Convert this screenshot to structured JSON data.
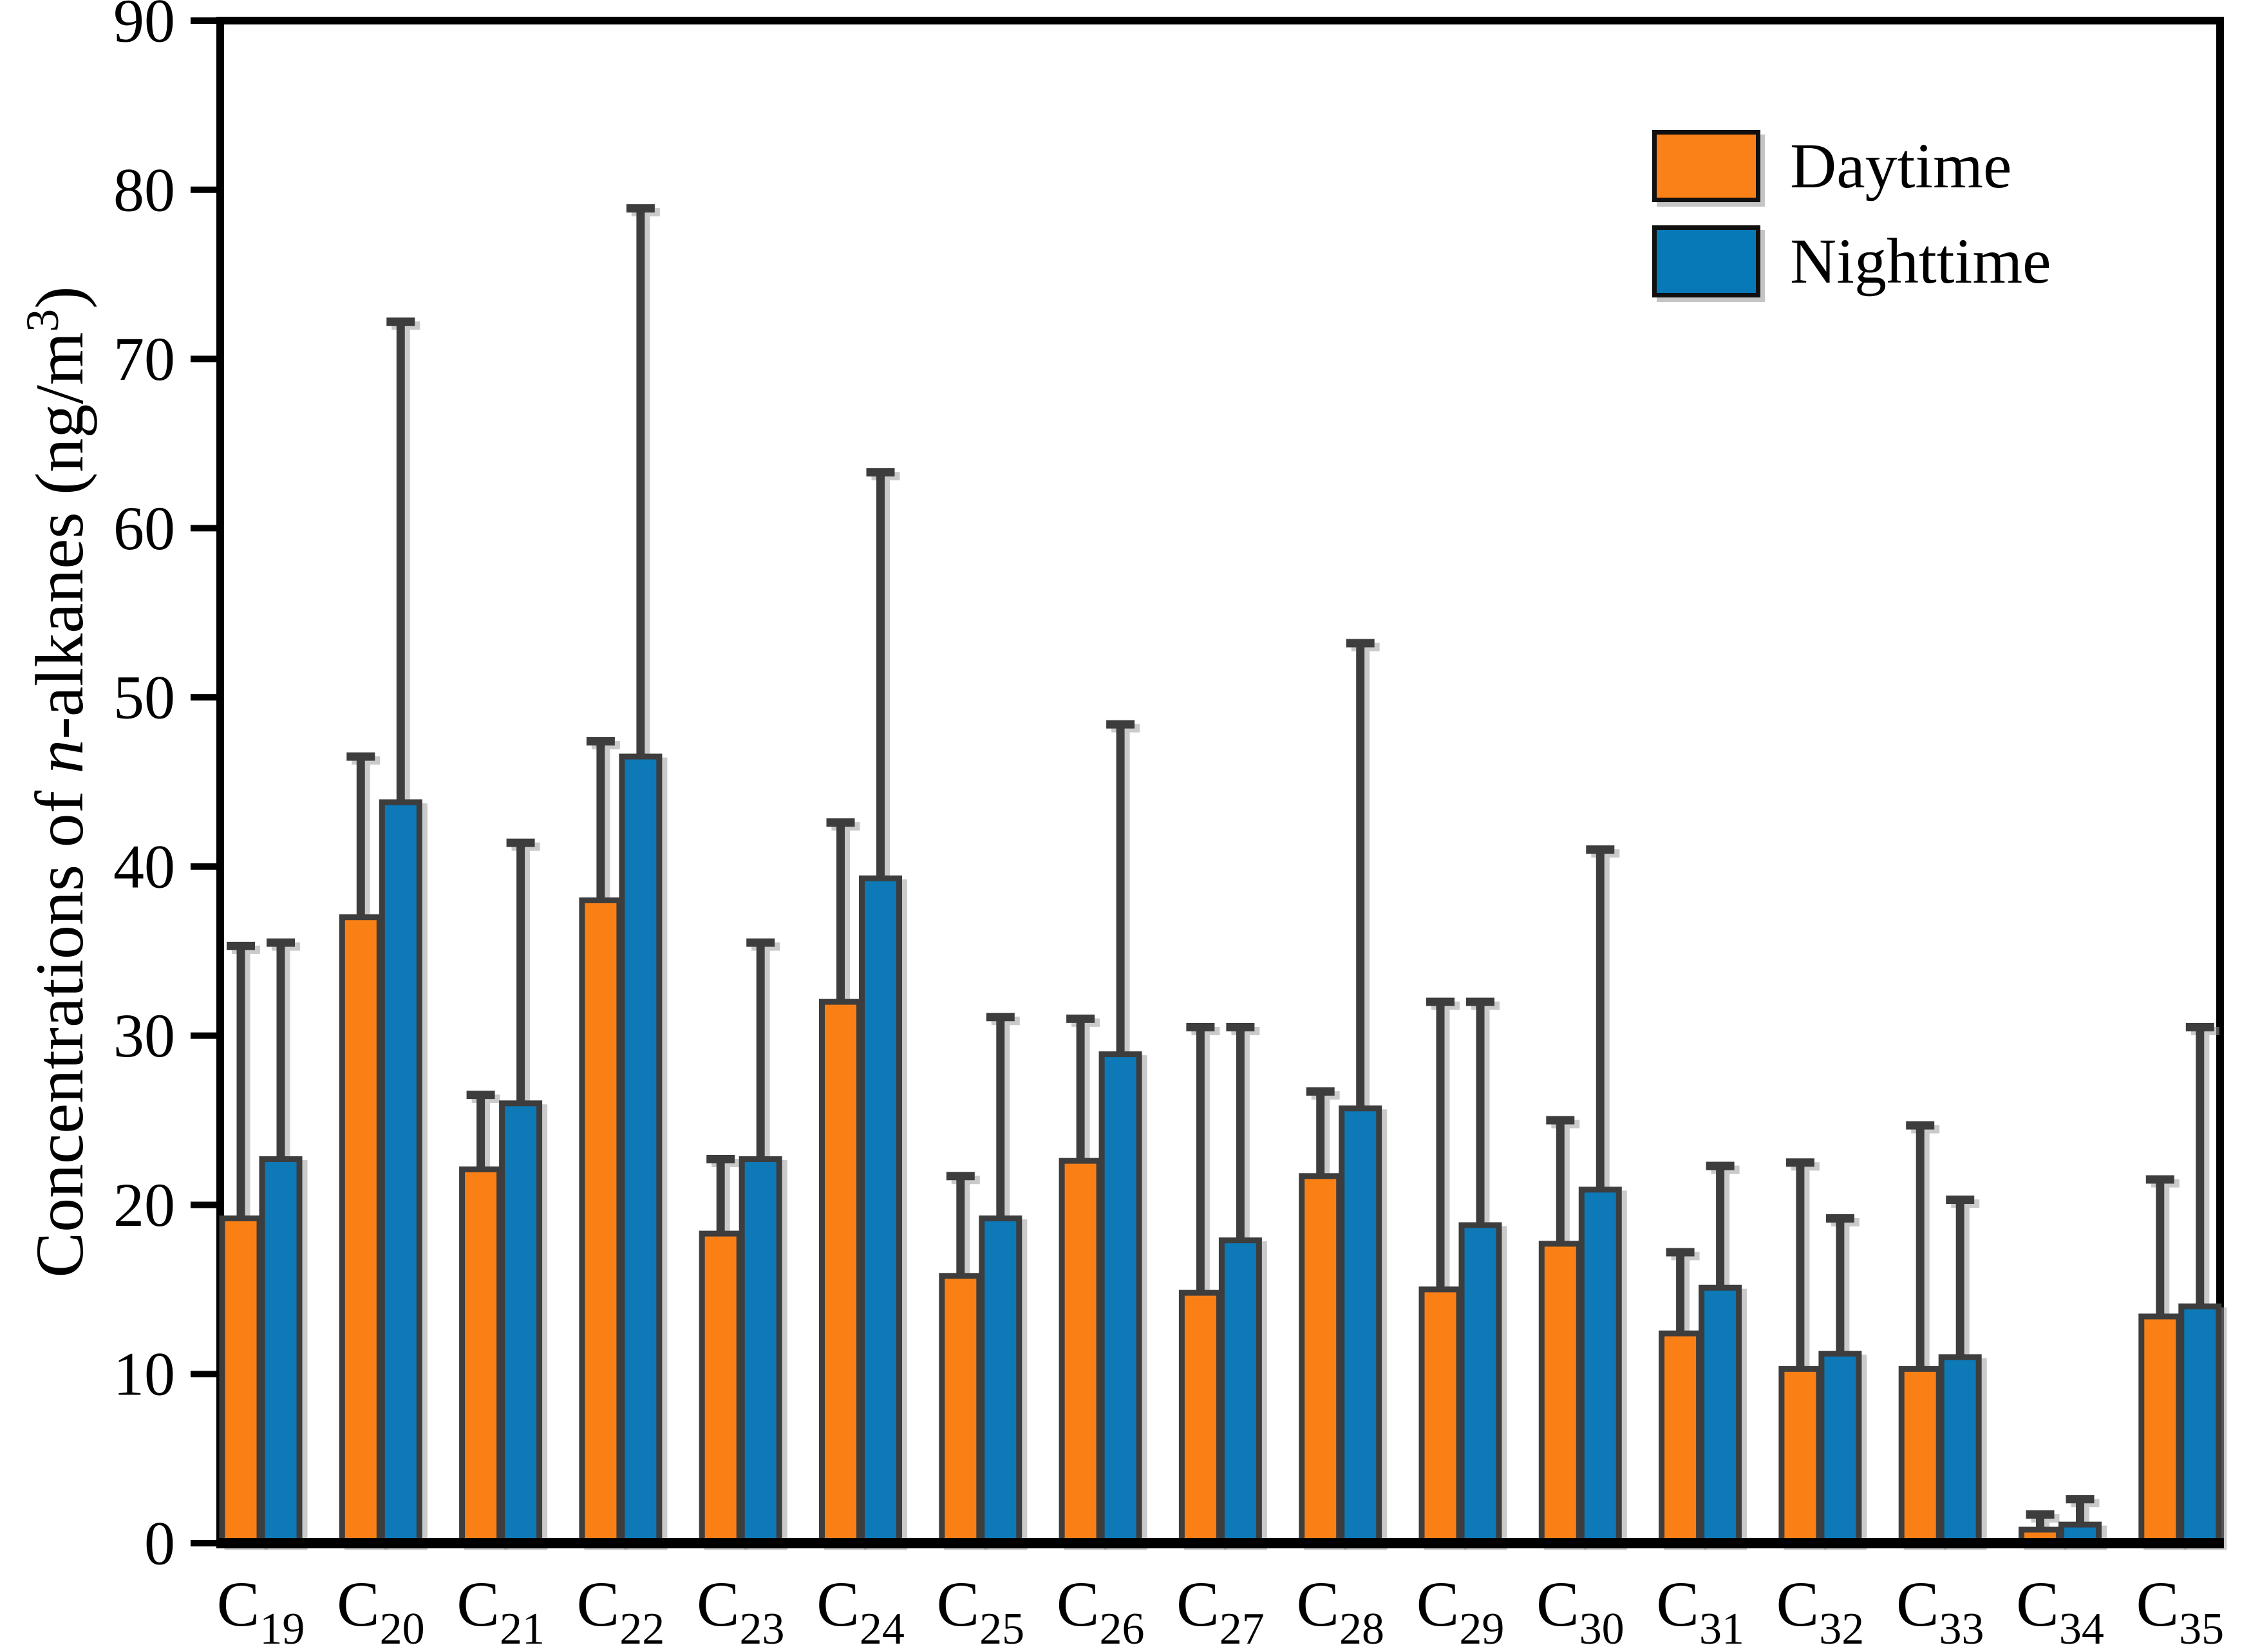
{
  "figure": {
    "background": "#ffffff"
  },
  "chart_data": {
    "type": "bar",
    "title": "",
    "xlabel": "",
    "ylabel_plain": "Concentrations of n-alkanes (ng/m3)",
    "ylabel_parts": {
      "pre": "Concentrations of ",
      "italic": "n",
      "mid": "-alkanes (ng/m",
      "sup": "3",
      "post": ")"
    },
    "ylim": [
      0,
      90
    ],
    "yticks": [
      0,
      10,
      20,
      30,
      40,
      50,
      60,
      70,
      80,
      90
    ],
    "grid": false,
    "legend_position": "top-right",
    "category_prefix": "C",
    "categories": [
      "19",
      "20",
      "21",
      "22",
      "23",
      "24",
      "25",
      "26",
      "27",
      "28",
      "29",
      "30",
      "31",
      "32",
      "33",
      "34",
      "35"
    ],
    "series": [
      {
        "name": "Daytime",
        "color": "#FA8018",
        "values": [
          19.2,
          37.0,
          22.1,
          38.0,
          18.3,
          32.0,
          15.8,
          22.6,
          14.8,
          21.7,
          15.0,
          17.7,
          12.4,
          10.3,
          10.3,
          0.8,
          13.4
        ],
        "error_upper": [
          16.1,
          9.5,
          4.4,
          9.4,
          4.4,
          10.6,
          5.9,
          8.4,
          15.7,
          5.0,
          17.0,
          7.3,
          4.8,
          12.2,
          14.4,
          0.9,
          8.1
        ]
      },
      {
        "name": "Nighttime",
        "color": "#0779B7",
        "values": [
          22.7,
          43.8,
          26.0,
          46.5,
          22.7,
          39.3,
          19.2,
          28.9,
          17.9,
          25.7,
          18.8,
          20.9,
          15.1,
          11.2,
          11.0,
          1.1,
          14.0
        ],
        "error_upper": [
          12.8,
          28.4,
          15.4,
          32.4,
          12.8,
          24.0,
          11.9,
          19.5,
          12.6,
          27.5,
          13.2,
          20.1,
          7.2,
          8.0,
          9.3,
          1.5,
          16.5
        ]
      }
    ],
    "bar_edge_color": "#3C3C3C",
    "error_bar_color": "#3C3C3C",
    "axis_color": "#000000",
    "shadow_color": "#9E9E9E"
  }
}
